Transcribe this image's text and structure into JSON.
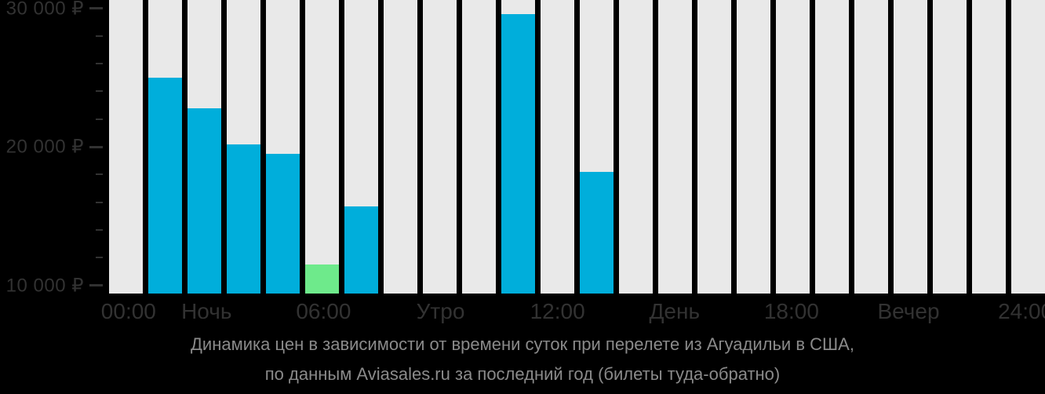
{
  "colors": {
    "background": "#000000",
    "column_background": "#e9e9e9",
    "bar": "#00aedb",
    "bar_highlight": "#6eea8b",
    "axis_text": "#323232",
    "caption_text": "#8a8a8a"
  },
  "y_axis": {
    "currency_symbol": "₽",
    "ticks": [
      {
        "value": 30000,
        "label": "30 000 ₽"
      },
      {
        "value": 20000,
        "label": "20 000 ₽"
      },
      {
        "value": 10000,
        "label": "10 000 ₽"
      }
    ],
    "minor_step": 2000
  },
  "x_axis": {
    "ticks": [
      {
        "col": 0,
        "label": "00:00"
      },
      {
        "col": 2,
        "label": "Ночь"
      },
      {
        "col": 5,
        "label": "06:00"
      },
      {
        "col": 8,
        "label": "Утро"
      },
      {
        "col": 11,
        "label": "12:00"
      },
      {
        "col": 14,
        "label": "День"
      },
      {
        "col": 17,
        "label": "18:00"
      },
      {
        "col": 20,
        "label": "Вечер"
      },
      {
        "col": 23,
        "label": "24:00"
      }
    ]
  },
  "caption": {
    "line1": "Динамика цен в зависимости от времени суток при перелете из Агуадильи в США,",
    "line2": "по данным Aviasales.ru за последний год (билеты туда-обратно)"
  },
  "chart_data": {
    "type": "bar",
    "title": "Динамика цен в зависимости от времени суток при перелете из Агуадильи в США, по данным Aviasales.ru за последний год (билеты туда-обратно)",
    "x_unit": "hour_of_day",
    "categories": [
      "00:00",
      "01:00",
      "02:00",
      "03:00",
      "04:00",
      "05:00",
      "06:00",
      "07:00",
      "08:00",
      "09:00",
      "10:00",
      "11:00",
      "12:00",
      "13:00",
      "14:00",
      "15:00",
      "16:00",
      "17:00",
      "18:00",
      "19:00",
      "20:00",
      "21:00",
      "22:00",
      "23:00"
    ],
    "values": [
      null,
      25000,
      22800,
      20200,
      19500,
      11500,
      15700,
      null,
      null,
      null,
      29600,
      null,
      18200,
      null,
      null,
      null,
      null,
      null,
      null,
      null,
      null,
      null,
      null,
      null
    ],
    "highlight_min": {
      "category": "05:00",
      "value": 11500
    },
    "ylim": [
      9400,
      30600
    ],
    "y_major_ticks": [
      10000,
      20000,
      30000
    ],
    "y_minor_step": 2000,
    "x_tick_labels": [
      "00:00",
      "Ночь",
      "06:00",
      "Утро",
      "12:00",
      "День",
      "18:00",
      "Вечер",
      "24:00"
    ],
    "grid": "off",
    "legend": "none"
  }
}
